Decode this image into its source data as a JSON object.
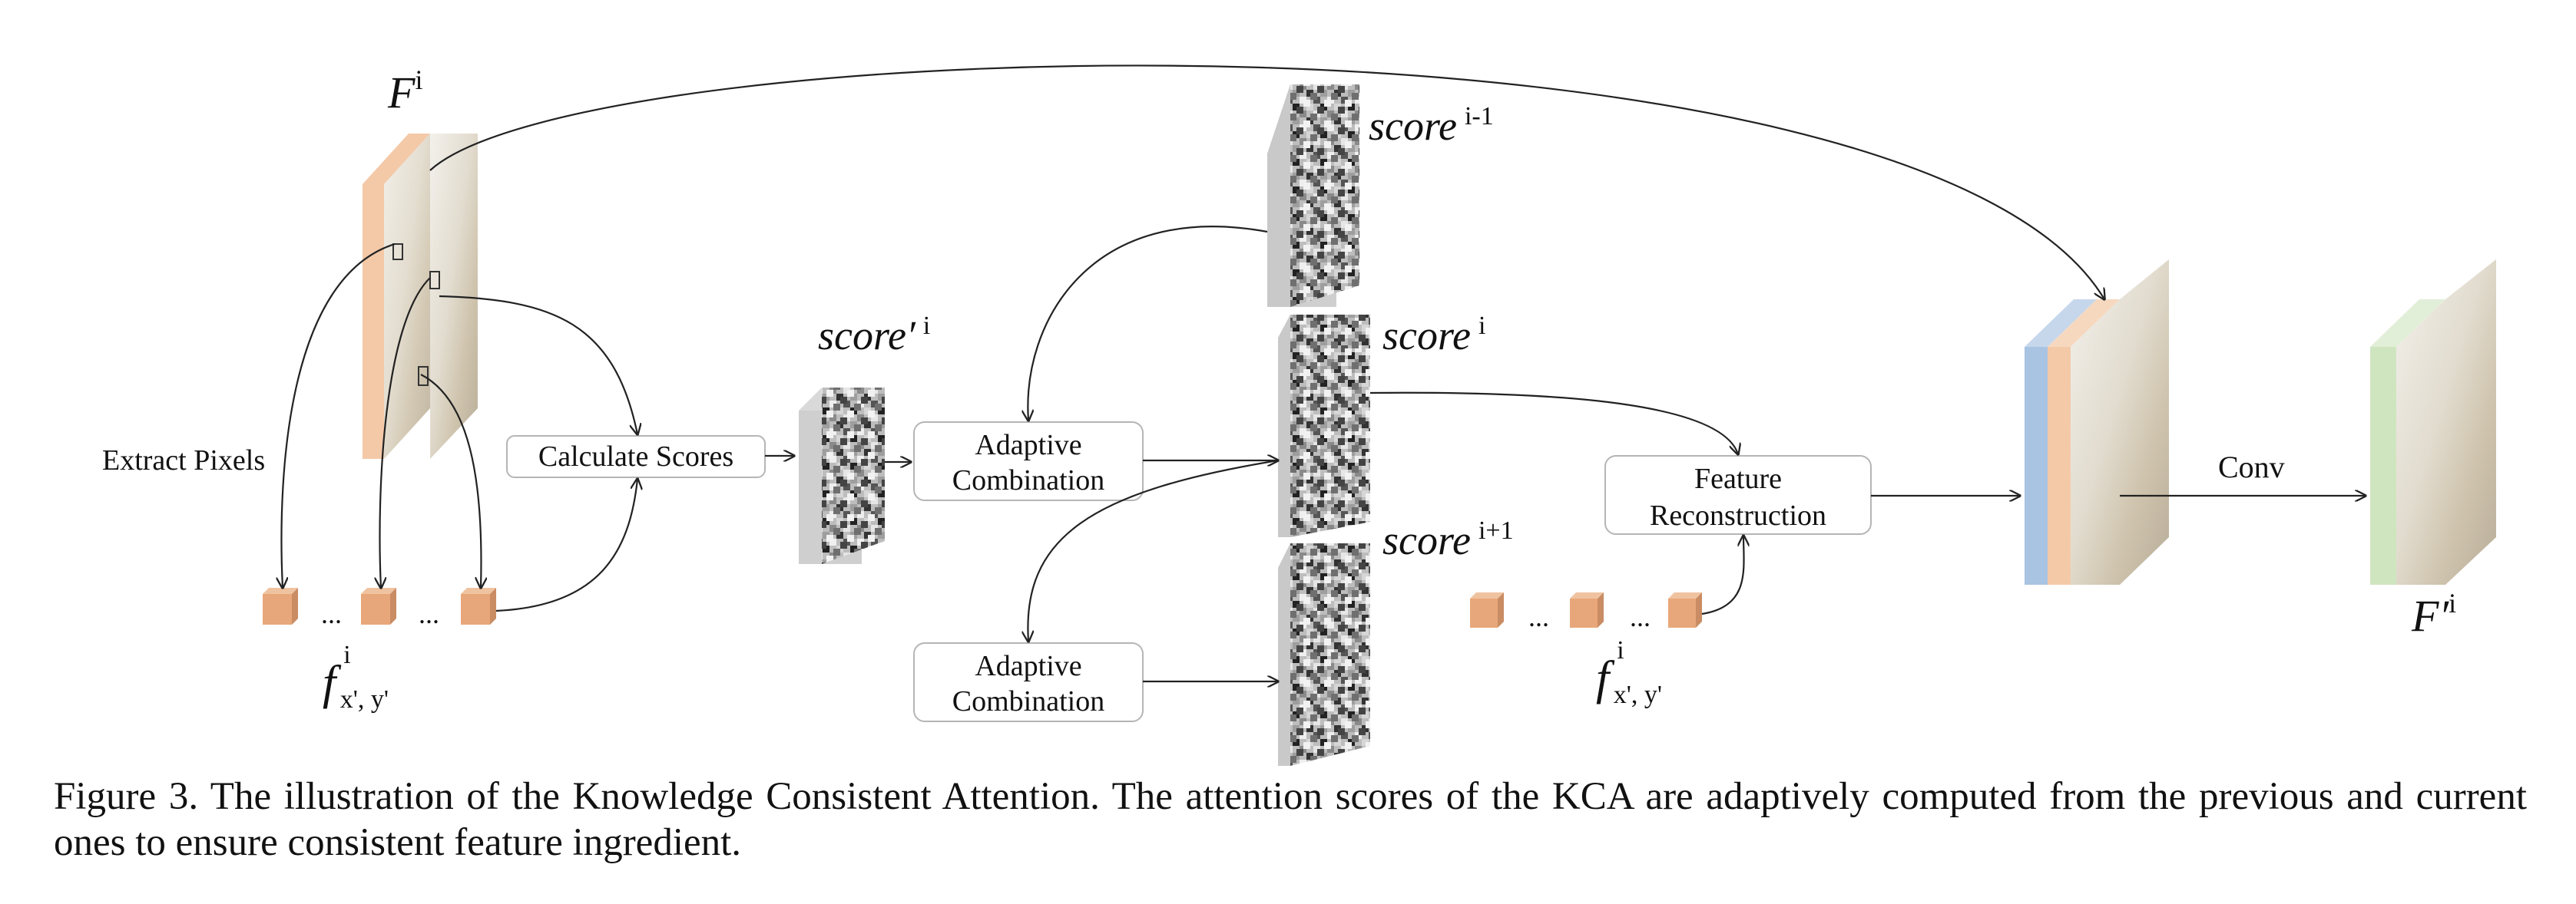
{
  "labels": {
    "F": "F",
    "F_sup": "i",
    "extract_pixels": "Extract Pixels",
    "calculate_scores": "Calculate Scores",
    "adaptive_combination_1": [
      "Adaptive",
      "Combination"
    ],
    "adaptive_combination_2": [
      "Adaptive",
      "Combination"
    ],
    "feature_reconstruction": [
      "Feature",
      "Reconstruction"
    ],
    "score_prime_main": "score′",
    "score_prime_sup": "i",
    "score_main": "score",
    "score_prev_sup": "i-1",
    "score_cur_sup": "i",
    "score_next_sup": "i+1",
    "ellipsis": "...",
    "f_main": "f",
    "f_sup": "i",
    "f_sub": "x', y'",
    "conv": "Conv",
    "F_out": "F′",
    "F_out_sup": "i"
  },
  "caption": "Figure 3. The illustration of the Knowledge Consistent Attention.  The attention scores of the KCA are adaptively computed from the previous and current ones to ensure consistent feature ingredient.",
  "colors": {
    "feature_orange": "#f4c9a8",
    "pixel_orange": "#e8a77a",
    "feature_blue": "#a9c3e2",
    "feature_green": "#cfe5bf",
    "score_gray": "#c8c8c8",
    "box_border": "#b5b5b5"
  }
}
